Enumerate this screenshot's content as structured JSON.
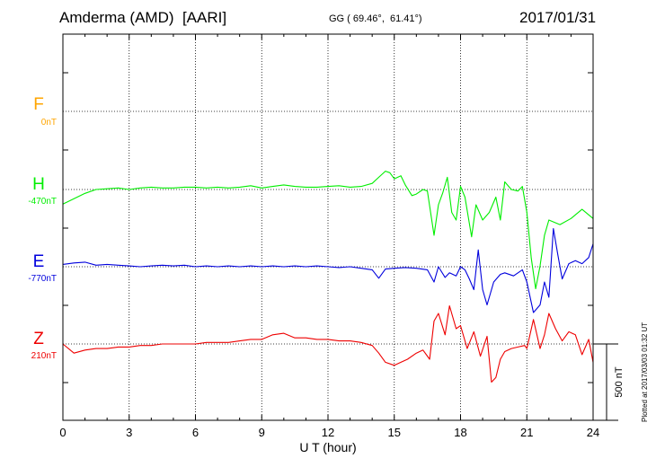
{
  "header": {
    "station": "Amderma (AMD)  [AARI]",
    "coords": "GG ( 69.46°,  61.41°)",
    "date": "2017/01/31"
  },
  "side_note": "Plotted at 2017/03/03 01:32 UT",
  "scale_bar_label": "500 nT",
  "colors": {
    "F": "#ffa500",
    "H": "#00ee00",
    "E": "#0000dd",
    "Z": "#ee0000"
  },
  "chart_data": {
    "type": "line",
    "xlabel": "U T (hour)",
    "xlim": [
      0,
      24
    ],
    "x_ticks": [
      0,
      3,
      6,
      9,
      12,
      15,
      18,
      21,
      24
    ],
    "x_tick_labels": [
      "0",
      "3",
      "6",
      "9",
      "12",
      "15",
      "18",
      "21",
      "24"
    ],
    "channels": [
      {
        "letter": "F",
        "baseline_label": "0nT",
        "color": "#ffa500",
        "has_data": false
      },
      {
        "letter": "H",
        "baseline_label": "-470nT",
        "color": "#00ee00",
        "has_data": true
      },
      {
        "letter": "E",
        "baseline_label": "-770nT",
        "color": "#0000dd",
        "has_data": true
      },
      {
        "letter": "Z",
        "baseline_label": "210nT",
        "color": "#ee0000",
        "has_data": true
      }
    ],
    "series": [
      {
        "name": "H",
        "unit": "nT offset from baseline",
        "points": [
          [
            0,
            -95
          ],
          [
            0.5,
            -60
          ],
          [
            1,
            -25
          ],
          [
            1.5,
            0
          ],
          [
            2,
            5
          ],
          [
            2.5,
            10
          ],
          [
            3,
            0
          ],
          [
            3.5,
            10
          ],
          [
            4,
            15
          ],
          [
            4.5,
            10
          ],
          [
            5,
            10
          ],
          [
            5.5,
            15
          ],
          [
            6,
            15
          ],
          [
            6.5,
            10
          ],
          [
            7,
            15
          ],
          [
            7.5,
            10
          ],
          [
            8,
            15
          ],
          [
            8.5,
            25
          ],
          [
            9,
            10
          ],
          [
            9.5,
            20
          ],
          [
            10,
            30
          ],
          [
            10.5,
            20
          ],
          [
            11,
            15
          ],
          [
            11.5,
            15
          ],
          [
            12,
            20
          ],
          [
            12.5,
            25
          ],
          [
            13,
            15
          ],
          [
            13.5,
            20
          ],
          [
            14,
            40
          ],
          [
            14.3,
            80
          ],
          [
            14.6,
            120
          ],
          [
            14.8,
            110
          ],
          [
            15,
            70
          ],
          [
            15.3,
            90
          ],
          [
            15.5,
            30
          ],
          [
            15.8,
            -40
          ],
          [
            16,
            -30
          ],
          [
            16.3,
            0
          ],
          [
            16.5,
            -10
          ],
          [
            16.8,
            -300
          ],
          [
            17,
            -100
          ],
          [
            17.2,
            -20
          ],
          [
            17.4,
            80
          ],
          [
            17.6,
            -150
          ],
          [
            17.8,
            -200
          ],
          [
            18,
            20
          ],
          [
            18.2,
            -50
          ],
          [
            18.5,
            -310
          ],
          [
            18.7,
            -100
          ],
          [
            19,
            -200
          ],
          [
            19.3,
            -150
          ],
          [
            19.6,
            -50
          ],
          [
            19.8,
            -200
          ],
          [
            20,
            50
          ],
          [
            20.3,
            0
          ],
          [
            20.6,
            -10
          ],
          [
            20.8,
            20
          ],
          [
            21,
            -150
          ],
          [
            21.2,
            -450
          ],
          [
            21.4,
            -650
          ],
          [
            21.6,
            -500
          ],
          [
            21.8,
            -300
          ],
          [
            22,
            -200
          ],
          [
            22.5,
            -230
          ],
          [
            23,
            -190
          ],
          [
            23.5,
            -130
          ],
          [
            24,
            -190
          ]
        ]
      },
      {
        "name": "E",
        "unit": "nT offset from baseline",
        "points": [
          [
            0,
            15
          ],
          [
            0.5,
            25
          ],
          [
            1,
            30
          ],
          [
            1.5,
            10
          ],
          [
            2,
            15
          ],
          [
            2.5,
            10
          ],
          [
            3,
            5
          ],
          [
            3.5,
            0
          ],
          [
            4,
            5
          ],
          [
            4.5,
            10
          ],
          [
            5,
            5
          ],
          [
            5.5,
            10
          ],
          [
            6,
            0
          ],
          [
            6.5,
            5
          ],
          [
            7,
            0
          ],
          [
            7.5,
            5
          ],
          [
            8,
            0
          ],
          [
            8.5,
            5
          ],
          [
            9,
            0
          ],
          [
            9.5,
            5
          ],
          [
            10,
            0
          ],
          [
            10.5,
            5
          ],
          [
            11,
            0
          ],
          [
            11.5,
            5
          ],
          [
            12,
            0
          ],
          [
            12.5,
            -5
          ],
          [
            13,
            0
          ],
          [
            13.5,
            -10
          ],
          [
            14,
            -20
          ],
          [
            14.3,
            -75
          ],
          [
            14.6,
            -15
          ],
          [
            15,
            -10
          ],
          [
            15.5,
            -5
          ],
          [
            16,
            -10
          ],
          [
            16.5,
            -20
          ],
          [
            16.8,
            -100
          ],
          [
            17,
            0
          ],
          [
            17.3,
            -70
          ],
          [
            17.5,
            -40
          ],
          [
            17.8,
            -60
          ],
          [
            18,
            0
          ],
          [
            18.2,
            -20
          ],
          [
            18.4,
            -80
          ],
          [
            18.6,
            -150
          ],
          [
            18.8,
            110
          ],
          [
            19,
            -150
          ],
          [
            19.2,
            -250
          ],
          [
            19.5,
            -100
          ],
          [
            19.8,
            -50
          ],
          [
            20,
            -40
          ],
          [
            20.4,
            -60
          ],
          [
            20.8,
            -20
          ],
          [
            21,
            -100
          ],
          [
            21.3,
            -300
          ],
          [
            21.6,
            -250
          ],
          [
            21.8,
            -100
          ],
          [
            22,
            -200
          ],
          [
            22.2,
            250
          ],
          [
            22.4,
            80
          ],
          [
            22.6,
            -80
          ],
          [
            22.9,
            20
          ],
          [
            23.2,
            40
          ],
          [
            23.5,
            20
          ],
          [
            23.8,
            60
          ],
          [
            24,
            150
          ]
        ]
      },
      {
        "name": "Z",
        "unit": "nT offset from baseline",
        "points": [
          [
            0,
            0
          ],
          [
            0.5,
            -60
          ],
          [
            1,
            -40
          ],
          [
            1.5,
            -30
          ],
          [
            2,
            -30
          ],
          [
            2.5,
            -20
          ],
          [
            3,
            -20
          ],
          [
            3.5,
            -10
          ],
          [
            4,
            -10
          ],
          [
            4.5,
            0
          ],
          [
            5,
            0
          ],
          [
            5.5,
            0
          ],
          [
            6,
            0
          ],
          [
            6.5,
            10
          ],
          [
            7,
            10
          ],
          [
            7.5,
            10
          ],
          [
            8,
            20
          ],
          [
            8.5,
            30
          ],
          [
            9,
            30
          ],
          [
            9.5,
            60
          ],
          [
            10,
            70
          ],
          [
            10.5,
            40
          ],
          [
            11,
            40
          ],
          [
            11.5,
            30
          ],
          [
            12,
            30
          ],
          [
            12.5,
            20
          ],
          [
            13,
            20
          ],
          [
            13.5,
            10
          ],
          [
            14,
            -10
          ],
          [
            14.3,
            -60
          ],
          [
            14.6,
            -120
          ],
          [
            15,
            -140
          ],
          [
            15.3,
            -120
          ],
          [
            15.6,
            -100
          ],
          [
            16,
            -60
          ],
          [
            16.3,
            -40
          ],
          [
            16.6,
            -100
          ],
          [
            16.8,
            150
          ],
          [
            17,
            200
          ],
          [
            17.3,
            60
          ],
          [
            17.5,
            250
          ],
          [
            17.8,
            100
          ],
          [
            18,
            120
          ],
          [
            18.3,
            -30
          ],
          [
            18.6,
            80
          ],
          [
            18.9,
            -80
          ],
          [
            19.2,
            50
          ],
          [
            19.4,
            -250
          ],
          [
            19.6,
            -220
          ],
          [
            19.8,
            -100
          ],
          [
            20,
            -50
          ],
          [
            20.3,
            -30
          ],
          [
            20.6,
            -20
          ],
          [
            20.9,
            -10
          ],
          [
            21,
            -30
          ],
          [
            21.3,
            160
          ],
          [
            21.6,
            -30
          ],
          [
            21.8,
            60
          ],
          [
            22,
            200
          ],
          [
            22.3,
            100
          ],
          [
            22.6,
            20
          ],
          [
            22.9,
            80
          ],
          [
            23.2,
            60
          ],
          [
            23.5,
            -70
          ],
          [
            23.8,
            30
          ],
          [
            24,
            -120
          ]
        ]
      }
    ]
  }
}
